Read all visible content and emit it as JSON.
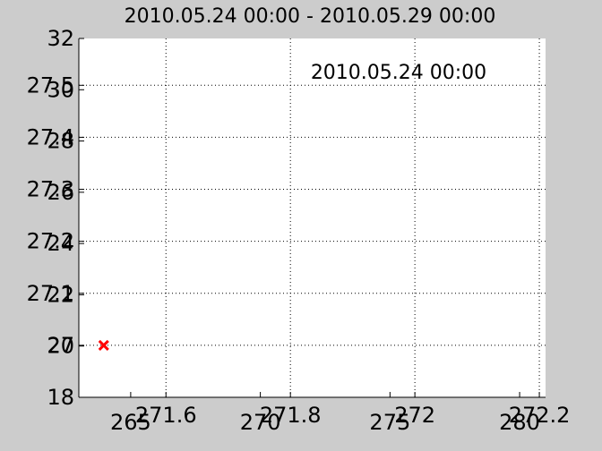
{
  "chart_data": {
    "type": "scatter",
    "title": "2010.05.24 00:00 - 2010.05.29 00:00",
    "annotation": "2010.05.24 00:00",
    "grid": true,
    "axes_primary": {
      "x_ticks": [
        "265",
        "270",
        "275",
        "280"
      ],
      "y_ticks": [
        "18",
        "20",
        "22",
        "24",
        "26",
        "28",
        "30",
        "32"
      ],
      "xlim": [
        263,
        281
      ],
      "ylim": [
        18,
        32
      ]
    },
    "axes_secondary": {
      "x_ticks": [
        "271.6",
        "271.8",
        "272",
        "272.2"
      ],
      "y_ticks": [
        "27",
        "27.1",
        "27.2",
        "27.3",
        "27.4",
        "27.5"
      ],
      "xlim": [
        271.46,
        272.21
      ],
      "ylim": [
        26.9,
        27.59
      ]
    },
    "series": [
      {
        "marker": "x",
        "color": "#ff0000",
        "points": [
          {
            "x": 271.5,
            "y": 27.0
          }
        ]
      }
    ]
  }
}
